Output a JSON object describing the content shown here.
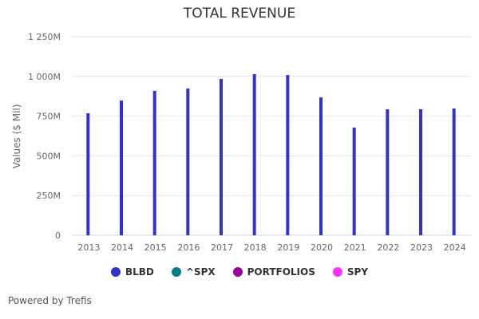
{
  "chart_data": {
    "type": "bar",
    "title": "TOTAL REVENUE",
    "xlabel": "",
    "ylabel": "Values ($ Mil)",
    "ylim": [
      0,
      1250
    ],
    "yticks": [
      0,
      250,
      500,
      750,
      1000,
      1250
    ],
    "ytick_labels": [
      "0",
      "250M",
      "500M",
      "750M",
      "1 000M",
      "1 250M"
    ],
    "grid": true,
    "categories": [
      "2013",
      "2014",
      "2015",
      "2016",
      "2017",
      "2018",
      "2019",
      "2020",
      "2021",
      "2022",
      "2023",
      "2024"
    ],
    "series": [
      {
        "name": "BLBD",
        "color": "#3333cc",
        "values": [
          768,
          848,
          909,
          924,
          984,
          1014,
          1009,
          868,
          678,
          793,
          793,
          798
        ]
      }
    ],
    "legend": {
      "placement": "bottom",
      "entries": [
        {
          "label": "BLBD",
          "color": "#3333cc"
        },
        {
          "label": "^SPX",
          "color": "#008080"
        },
        {
          "label": "PORTFOLIOS",
          "color": "#990099"
        },
        {
          "label": "SPY",
          "color": "#ff33ff"
        }
      ]
    }
  },
  "footer": {
    "credit": "Powered by Trefis"
  }
}
